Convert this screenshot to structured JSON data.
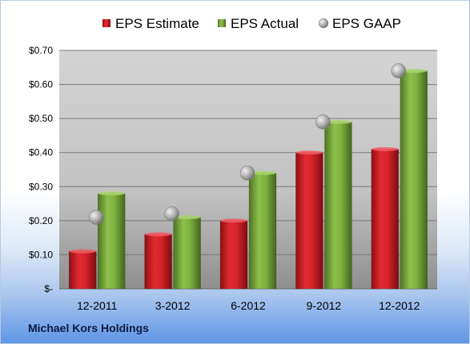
{
  "chart_data": {
    "type": "bar",
    "categories": [
      "12-2011",
      "3-2012",
      "6-2012",
      "9-2012",
      "12-2012"
    ],
    "series": [
      {
        "name": "EPS Estimate",
        "values": [
          0.11,
          0.16,
          0.2,
          0.4,
          0.41
        ],
        "color": "#cc1f26",
        "kind": "bar"
      },
      {
        "name": "EPS Actual",
        "values": [
          0.28,
          0.21,
          0.34,
          0.49,
          0.64
        ],
        "color": "#77a63a",
        "kind": "bar"
      },
      {
        "name": "EPS GAAP",
        "values": [
          0.21,
          0.22,
          0.34,
          0.49,
          0.64
        ],
        "color": "#a9a9a9",
        "kind": "marker"
      }
    ],
    "y_ticks": [
      "$-",
      "$0.10",
      "$0.20",
      "$0.30",
      "$0.40",
      "$0.50",
      "$0.60",
      "$0.70"
    ],
    "ylim": [
      0,
      0.7
    ],
    "grid": true,
    "legend_position": "top",
    "footer": "Michael Kors Holdings"
  }
}
